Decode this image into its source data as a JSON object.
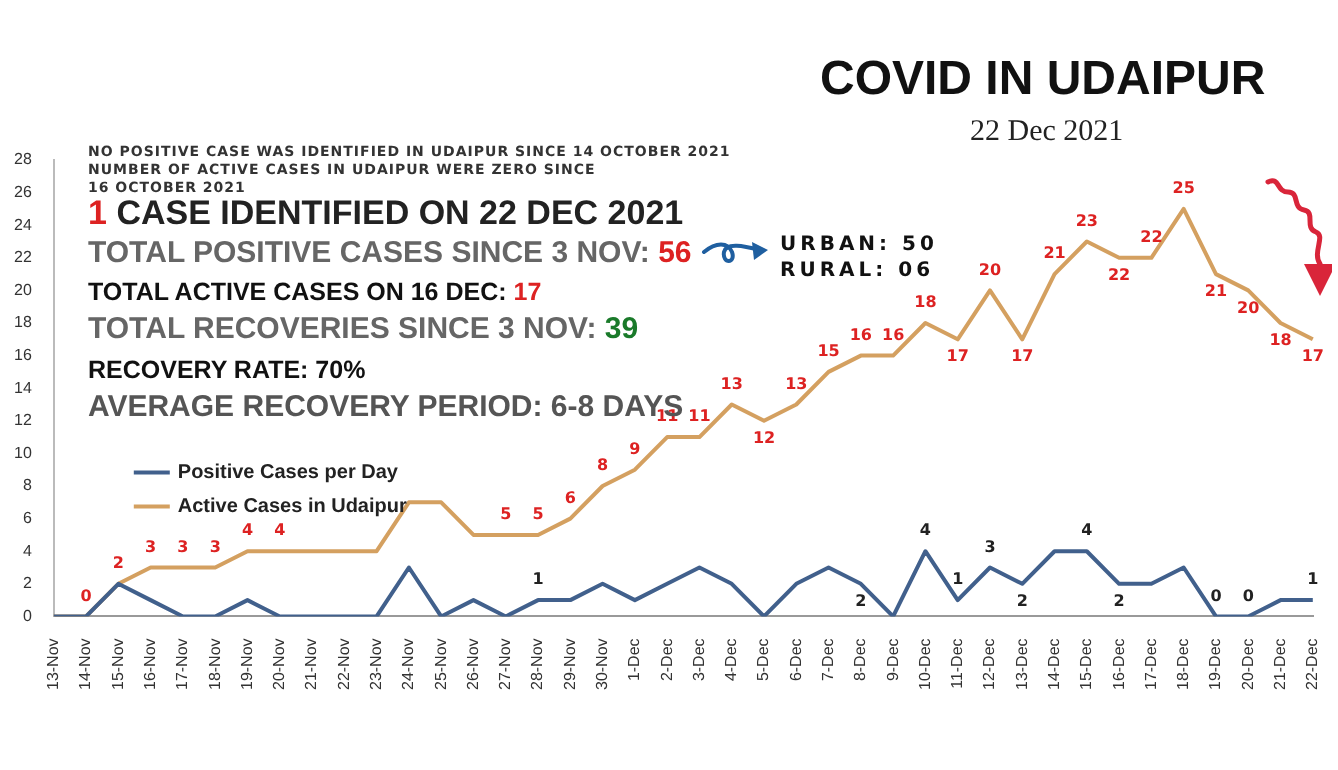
{
  "chart_data": {
    "type": "line",
    "title": "COVID IN UDAIPUR",
    "subtitle": "22 Dec 2021",
    "annotations": [
      "NO POSITIVE CASE WAS IDENTIFIED IN UDAIPUR SINCE 14 OCTOBER 2021",
      "NUMBER OF ACTIVE CASES IN UDAIPUR WERE ZERO SINCE 16 OCTOBER 2021",
      "1 CASE IDENTIFIED ON 22 DEC 2021",
      "TOTAL POSITIVE CASES SINCE 3 NOV: 56",
      "TOTAL ACTIVE CASES ON 16 DEC: 17",
      "TOTAL RECOVERIES SINCE 3 NOV: 39",
      "RECOVERY RATE: 70%",
      "AVERAGE RECOVERY PERIOD: 6-8 DAYS",
      "URBAN: 50",
      "RURAL: 06"
    ],
    "categories": [
      "13-Nov",
      "14-Nov",
      "15-Nov",
      "16-Nov",
      "17-Nov",
      "18-Nov",
      "19-Nov",
      "20-Nov",
      "21-Nov",
      "22-Nov",
      "23-Nov",
      "24-Nov",
      "25-Nov",
      "26-Nov",
      "27-Nov",
      "28-Nov",
      "29-Nov",
      "30-Nov",
      "1-Dec",
      "2-Dec",
      "3-Dec",
      "4-Dec",
      "5-Dec",
      "6-Dec",
      "7-Dec",
      "8-Dec",
      "9-Dec",
      "10-Dec",
      "11-Dec",
      "12-Dec",
      "13-Dec",
      "14-Dec",
      "15-Dec",
      "16-Dec",
      "17-Dec",
      "18-Dec",
      "19-Dec",
      "20-Dec",
      "21-Dec",
      "22-Dec"
    ],
    "series": [
      {
        "name": "Positive Cases per Day",
        "color": "#41608c",
        "values": [
          0,
          0,
          2,
          1,
          0,
          0,
          1,
          0,
          0,
          0,
          0,
          3,
          0,
          1,
          0,
          1,
          1,
          2,
          1,
          2,
          3,
          2,
          0,
          2,
          3,
          2,
          0,
          4,
          1,
          3,
          2,
          4,
          4,
          2,
          2,
          3,
          0,
          0,
          1,
          1
        ],
        "value_labels": [
          null,
          null,
          null,
          null,
          null,
          null,
          null,
          null,
          null,
          null,
          null,
          null,
          null,
          null,
          null,
          "1",
          null,
          null,
          null,
          null,
          null,
          null,
          null,
          null,
          null,
          "2",
          null,
          "4",
          "1",
          "3",
          "2",
          null,
          "4",
          "2",
          null,
          null,
          "0",
          "0",
          null,
          "1"
        ]
      },
      {
        "name": "Active Cases in Udaipur",
        "color": "#d4a060",
        "values": [
          0,
          0,
          2,
          3,
          3,
          3,
          4,
          4,
          4,
          4,
          4,
          7,
          7,
          5,
          5,
          5,
          6,
          8,
          9,
          11,
          11,
          13,
          12,
          13,
          15,
          16,
          16,
          18,
          17,
          20,
          17,
          21,
          23,
          22,
          22,
          25,
          21,
          20,
          18,
          17
        ],
        "value_labels": [
          null,
          "0",
          "2",
          "3",
          "3",
          "3",
          "4",
          "4",
          null,
          null,
          null,
          null,
          null,
          null,
          "5",
          "5",
          "6",
          "8",
          "9",
          "11",
          "11",
          "13",
          "12",
          "13",
          "15",
          "16",
          "16",
          "18",
          "17",
          "20",
          "17",
          "21",
          "23",
          "22",
          "22",
          "25",
          "21",
          "20",
          "18",
          "17"
        ]
      }
    ],
    "ylim": [
      0,
      28
    ],
    "yticks": [
      0,
      2,
      4,
      6,
      8,
      10,
      12,
      14,
      16,
      18,
      20,
      22,
      24,
      26,
      28
    ],
    "grid": false,
    "legend": "bottom left",
    "marker": "none",
    "line_style": "solid"
  }
}
